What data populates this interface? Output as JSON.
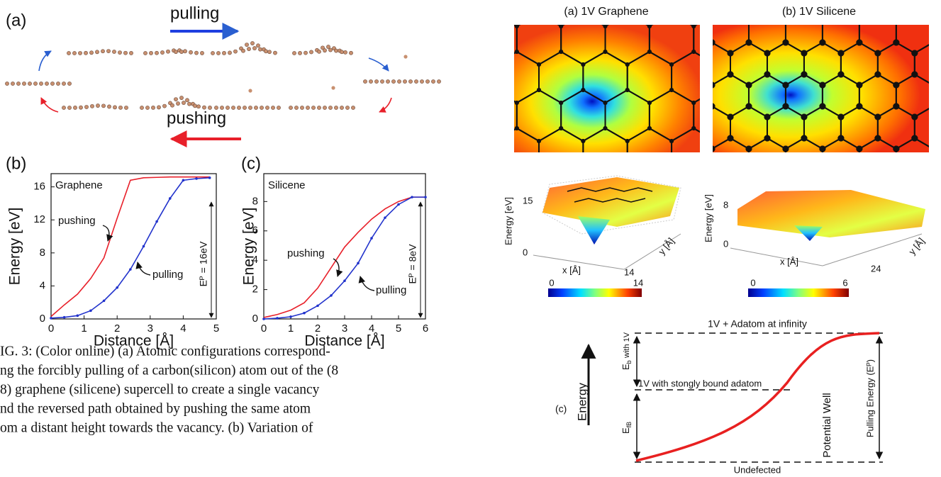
{
  "panel_a": {
    "label": "(a)",
    "pulling": "pulling",
    "pushing": "pushing"
  },
  "chart_data": [
    {
      "type": "line",
      "panel_label": "(b)",
      "material": "Graphene",
      "xlabel": "Distance [Å]",
      "ylabel": "Energy [eV]",
      "annotation": "Eᴾ = 16eV",
      "x": [
        0,
        0.4,
        0.8,
        1.2,
        1.6,
        2.0,
        2.4,
        2.8,
        3.2,
        3.6,
        4.0,
        4.4,
        4.8
      ],
      "series": [
        {
          "name": "pushing",
          "color": "#e8202a",
          "values": [
            0.3,
            1.7,
            3.0,
            4.9,
            7.4,
            12.2,
            16.8,
            17.1,
            17.15,
            17.2,
            17.2,
            17.2,
            17.2
          ]
        },
        {
          "name": "pulling",
          "color": "#2233cc",
          "values": [
            0.1,
            0.2,
            0.4,
            1.0,
            2.2,
            3.8,
            6.0,
            8.8,
            11.8,
            14.6,
            16.8,
            17.0,
            17.1
          ]
        }
      ],
      "xlim": [
        0,
        5
      ],
      "ylim": [
        0,
        17.6
      ],
      "xticks": [
        0,
        1,
        2,
        3,
        4,
        5
      ],
      "yticks": [
        0,
        4,
        8,
        12,
        16
      ]
    },
    {
      "type": "line",
      "panel_label": "(c)",
      "material": "Silicene",
      "xlabel": "Distance [Å]",
      "ylabel": "Energy [eV]",
      "annotation": "Eᴾ = 8eV",
      "x": [
        0,
        0.5,
        1,
        1.5,
        2,
        2.5,
        3,
        3.5,
        4,
        4.5,
        5,
        5.5,
        6
      ],
      "series": [
        {
          "name": "pushing",
          "color": "#e8202a",
          "values": [
            0.1,
            0.3,
            0.6,
            1.1,
            2.1,
            3.5,
            4.9,
            5.9,
            6.8,
            7.5,
            8.0,
            8.3,
            8.3
          ]
        },
        {
          "name": "pulling",
          "color": "#2233cc",
          "values": [
            0,
            0.05,
            0.15,
            0.4,
            0.9,
            1.6,
            2.6,
            3.8,
            5.5,
            6.9,
            7.8,
            8.3,
            8.3
          ]
        }
      ],
      "xlim": [
        0,
        6
      ],
      "ylim": [
        0,
        9.9
      ],
      "xticks": [
        0,
        1,
        2,
        3,
        4,
        5,
        6
      ],
      "yticks": [
        0,
        2,
        4,
        6,
        8
      ]
    }
  ],
  "caption": [
    "IG. 3: (Color online) (a) Atomic configurations correspond-",
    "ng the forcibly pulling of a carbon(silicon) atom out of the (8",
    " 8) graphene (silicene) supercell to create a single vacancy",
    "nd the reversed path obtained by pushing the same atom",
    "om a distant height towards the vacancy.  (b) Variation of"
  ],
  "right": {
    "graphene": {
      "title": "(a) 1V Graphene",
      "zlabel": "Energy [eV]",
      "zmax": "15",
      "zmin": "0",
      "xlabel": "x [Å]",
      "xmax": "14",
      "ylabel": "y [Å]",
      "cbar_min": "0",
      "cbar_max": "14"
    },
    "silicene": {
      "title": "(b) 1V Silicene",
      "zlabel": "Energy [eV]",
      "zmax": "8",
      "zmin": "0",
      "xlabel": "x [Å]",
      "xmax": "24",
      "ylabel": "y [Å]",
      "cbar_min": "0",
      "cbar_max": "6"
    },
    "diagram": {
      "label": "(c)",
      "axis": "Energy",
      "top": "1V + Adatom at infinity",
      "eb": "E",
      "eb_sub": "b",
      "eb_note": "with 1V",
      "middle": "1V with stongly bound adatom",
      "ef": "E",
      "ef_sub": "fB",
      "well": "Potential Well",
      "pulling": "Pulling Energy (Eᴾ)",
      "bottom": "Undefected"
    }
  }
}
